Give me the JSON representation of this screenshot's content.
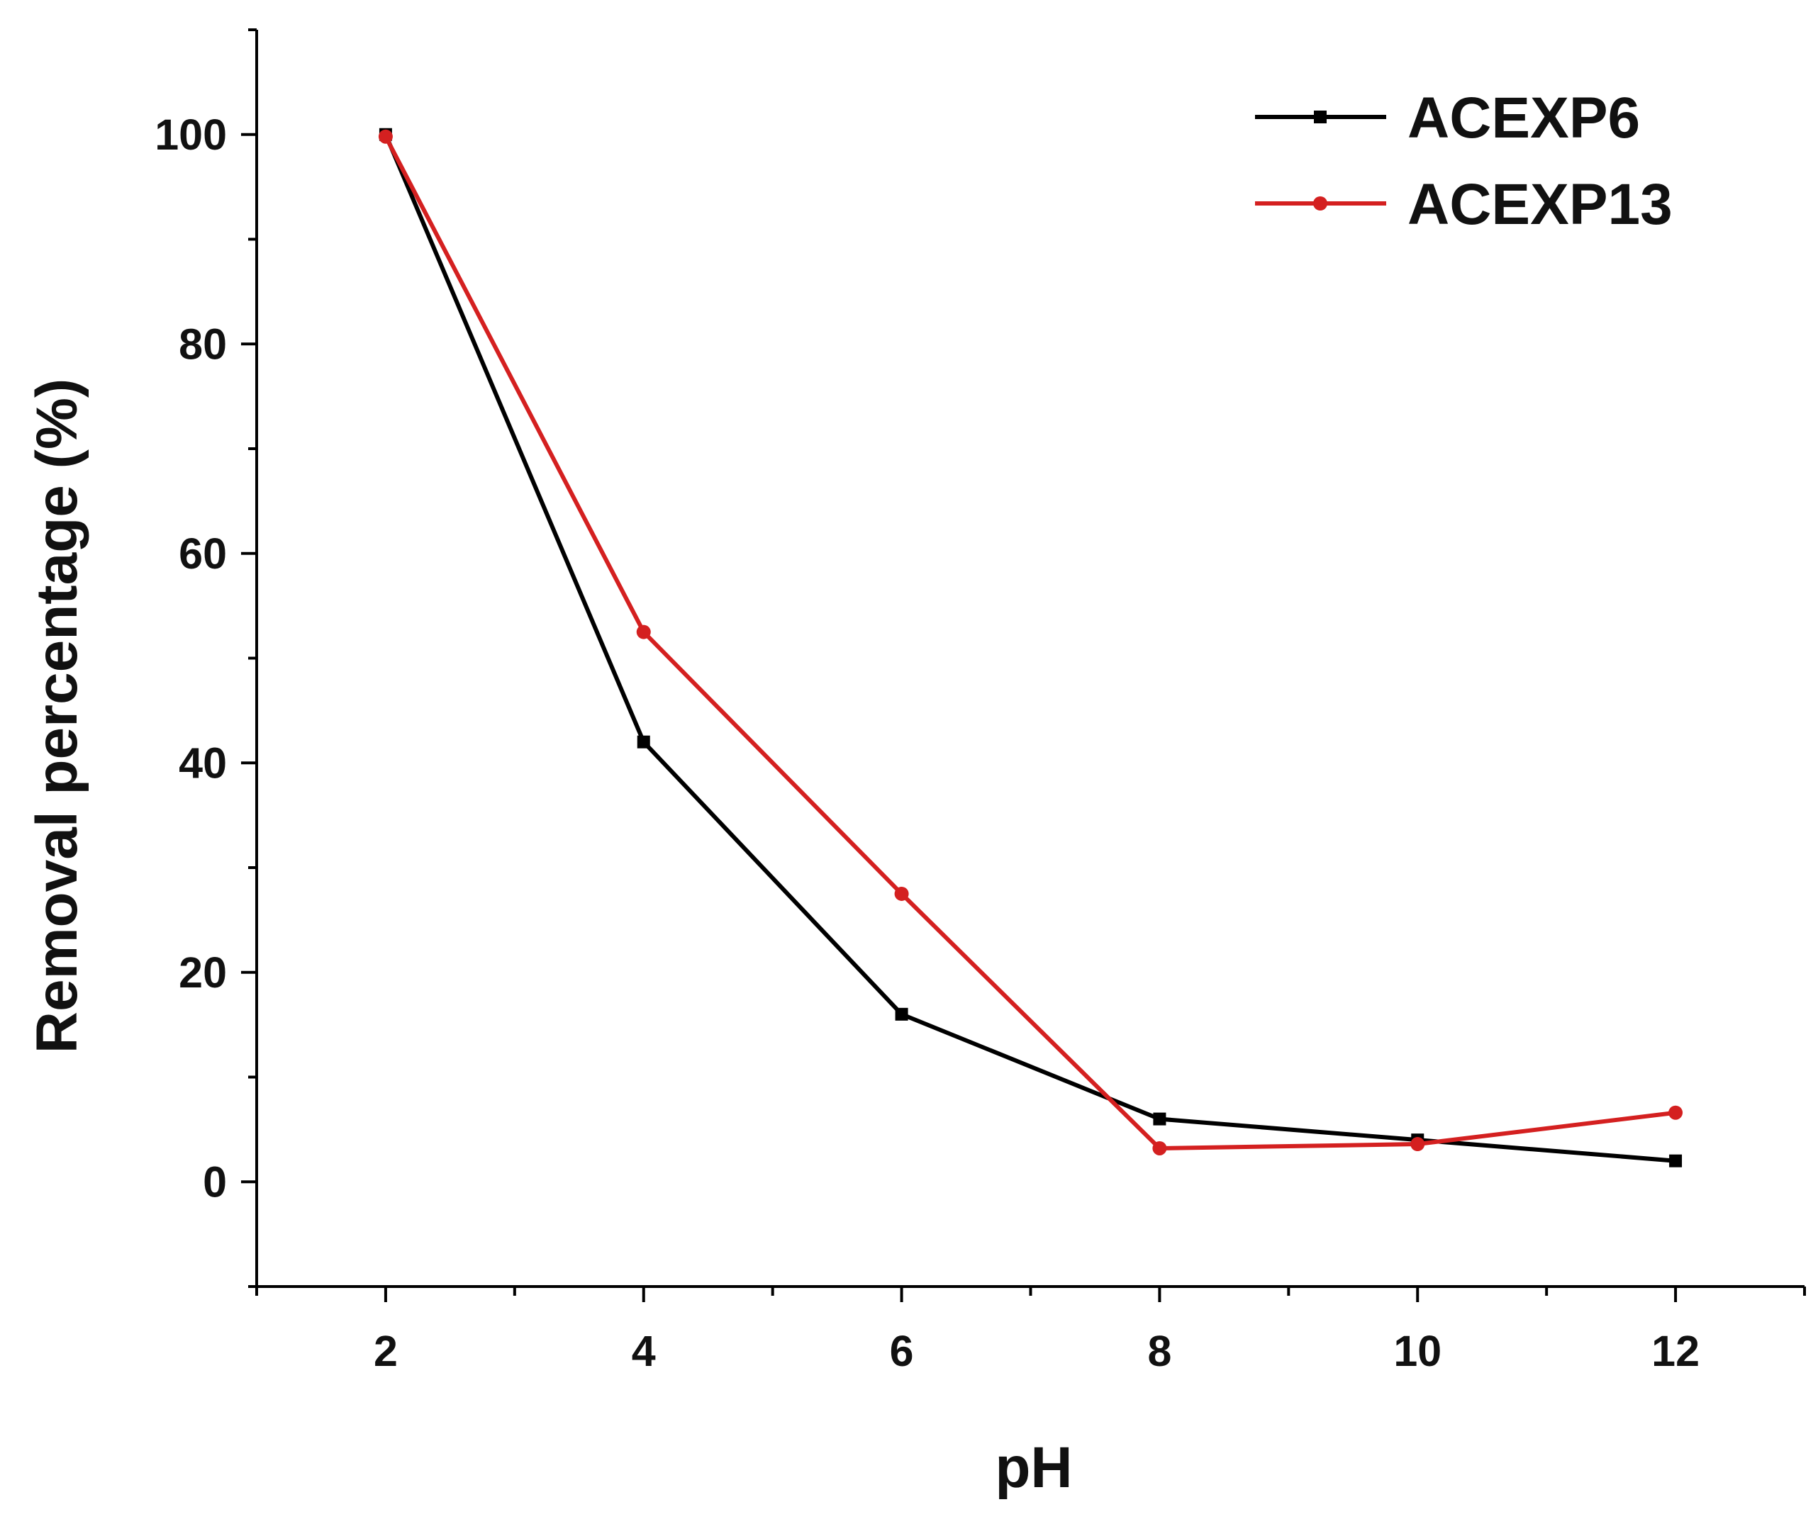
{
  "chart_data": {
    "type": "line",
    "title": "",
    "xlabel": "pH",
    "ylabel": "Removal percentage (%)",
    "xlim": [
      1,
      13
    ],
    "ylim": [
      -10,
      110
    ],
    "x_ticks": [
      2,
      4,
      6,
      8,
      10,
      12
    ],
    "x_tick_labels": [
      "2",
      "4",
      "6",
      "8",
      "10",
      "12"
    ],
    "y_ticks": [
      0,
      20,
      40,
      60,
      80,
      100
    ],
    "y_tick_labels": [
      "0",
      "20",
      "40",
      "60",
      "80",
      "100"
    ],
    "grid": false,
    "legend_position": "top-right",
    "x": [
      2,
      4,
      6,
      8,
      10,
      12
    ],
    "series": [
      {
        "name": "ACEXP6",
        "color": "#000000",
        "marker": "square",
        "values": [
          100,
          42,
          16,
          6,
          4,
          2
        ]
      },
      {
        "name": "ACEXP13",
        "color": "#d42020",
        "marker": "circle",
        "values": [
          99.8,
          52.5,
          27.5,
          3.2,
          3.6,
          6.6
        ]
      }
    ]
  }
}
